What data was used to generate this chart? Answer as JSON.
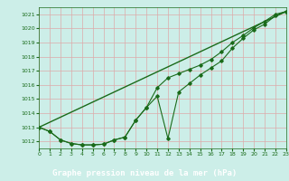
{
  "title": "Graphe pression niveau de la mer (hPa)",
  "bg_color": "#cceee8",
  "plot_bg_color": "#cceee8",
  "grid_color": "#ddaaaa",
  "line_color": "#1a6b1a",
  "label_bar_color": "#2a6b2a",
  "label_text_color": "#ffffff",
  "xlim": [
    0,
    23
  ],
  "ylim": [
    1011.5,
    1021.5
  ],
  "xticks": [
    0,
    1,
    2,
    3,
    4,
    5,
    6,
    7,
    8,
    9,
    10,
    11,
    12,
    13,
    14,
    15,
    16,
    17,
    18,
    19,
    20,
    21,
    22,
    23
  ],
  "yticks": [
    1012,
    1013,
    1014,
    1015,
    1016,
    1017,
    1018,
    1019,
    1020,
    1021
  ],
  "series1_x": [
    0,
    1,
    2,
    3,
    4,
    5,
    6,
    7,
    8,
    9,
    10,
    11,
    12,
    13,
    14,
    15,
    16,
    17,
    18,
    19,
    20,
    21,
    22,
    23
  ],
  "series1_y": [
    1013.0,
    1012.7,
    1012.1,
    1011.85,
    1011.75,
    1011.75,
    1011.8,
    1012.1,
    1012.3,
    1013.5,
    1014.4,
    1015.2,
    1012.2,
    1015.5,
    1016.1,
    1016.7,
    1017.2,
    1017.7,
    1018.6,
    1019.3,
    1019.9,
    1020.3,
    1020.9,
    1021.2
  ],
  "series2_x": [
    0,
    1,
    2,
    3,
    4,
    5,
    6,
    7,
    8,
    9,
    10,
    11,
    12,
    13,
    14,
    15,
    16,
    17,
    18,
    19,
    20,
    21,
    22,
    23
  ],
  "series2_y": [
    1013.0,
    1012.7,
    1012.1,
    1011.85,
    1011.75,
    1011.75,
    1011.8,
    1012.1,
    1012.3,
    1013.5,
    1014.4,
    1015.8,
    1016.5,
    1016.8,
    1017.1,
    1017.4,
    1017.8,
    1018.35,
    1019.0,
    1019.5,
    1020.05,
    1020.5,
    1021.0,
    1021.2
  ],
  "series3_x": [
    0,
    23
  ],
  "series3_y": [
    1013.0,
    1021.2
  ]
}
